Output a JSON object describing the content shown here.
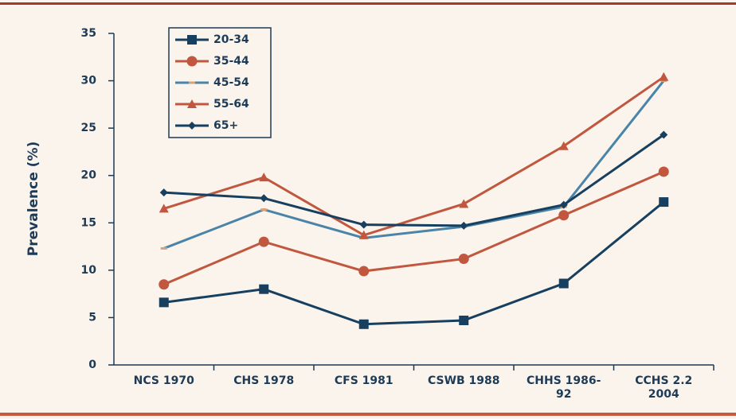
{
  "chart_data": {
    "type": "line",
    "y_label": "Prevalence (%)",
    "categories": [
      "NCS 1970",
      "CHS 1978",
      "CFS 1981",
      "CSWB 1988",
      "CHHS 1986-92",
      "CCHS 2.2 2004"
    ],
    "series": [
      {
        "name": "20-34",
        "color": "#173f5f",
        "marker": "square",
        "values": [
          6.6,
          8.0,
          4.3,
          4.7,
          8.6,
          17.2
        ]
      },
      {
        "name": "35-44",
        "color": "#c0573e",
        "marker": "circle",
        "values": [
          8.5,
          13.0,
          9.9,
          11.2,
          15.8,
          20.4
        ]
      },
      {
        "name": "45-54",
        "color": "#4a84a8",
        "marker": "dash",
        "values": [
          12.3,
          16.4,
          13.4,
          14.6,
          16.7,
          30.0
        ]
      },
      {
        "name": "55-64",
        "color": "#c0573e",
        "marker": "triangle",
        "values": [
          16.5,
          19.8,
          13.7,
          17.0,
          23.1,
          30.4
        ]
      },
      {
        "name": "65+",
        "color": "#173f5f",
        "marker": "diamond",
        "values": [
          18.2,
          17.6,
          14.8,
          14.7,
          16.9,
          24.3
        ]
      }
    ],
    "ylim": [
      0,
      35
    ],
    "yticks": [
      0,
      5,
      10,
      15,
      20,
      25,
      30,
      35
    ],
    "legend": "top-left"
  }
}
